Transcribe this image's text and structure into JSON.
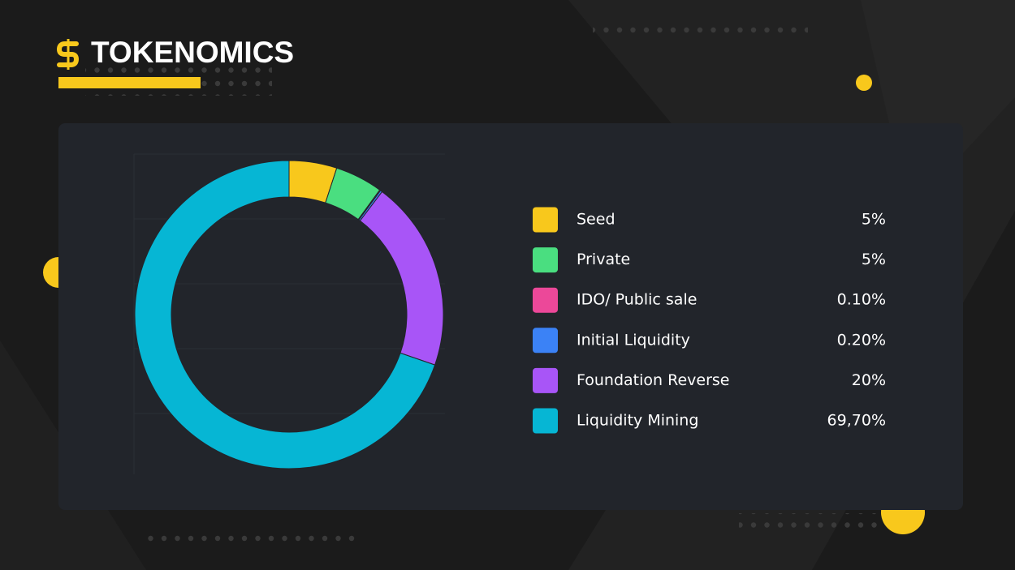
{
  "chart_data": {
    "type": "pie",
    "title": "TOKENOMICS",
    "donut": true,
    "categories": [
      "Seed",
      "Private",
      "IDO/ Public sale",
      "Initial Liquidity",
      "Foundation Reverse",
      "Liquidity Mining"
    ],
    "values": [
      5,
      5,
      0.1,
      0.2,
      20,
      69.7
    ],
    "value_labels": [
      "5%",
      "5%",
      "0.10%",
      "0.20%",
      "20%",
      "69,70%"
    ],
    "colors": [
      "#f8c81c",
      "#4ade80",
      "#ec4899",
      "#3b82f6",
      "#a855f7",
      "#06b6d4"
    ]
  }
}
